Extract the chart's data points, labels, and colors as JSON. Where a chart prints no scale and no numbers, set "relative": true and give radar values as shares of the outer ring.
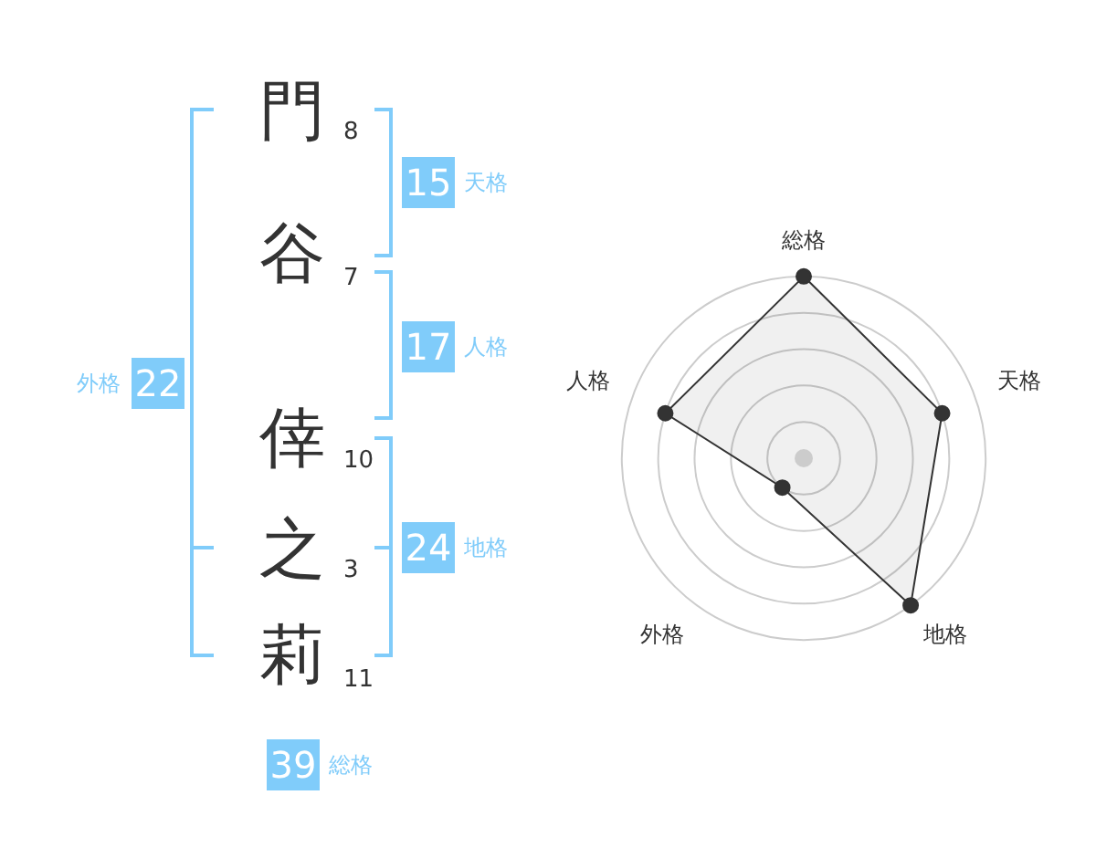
{
  "chart_data": [
    {
      "type": "other",
      "categories": [
        "門",
        "谷",
        "倖",
        "之",
        "莉"
      ],
      "values": [
        8,
        7,
        10,
        3,
        11
      ],
      "data_labels": true
    },
    {
      "type": "other",
      "categories": [
        "天格",
        "人格",
        "地格",
        "外格",
        "総格"
      ],
      "values": [
        15,
        17,
        24,
        22,
        39
      ],
      "color": "#80ccfa",
      "data_labels": true
    },
    {
      "type": "radar",
      "categories": [
        "総格",
        "天格",
        "地格",
        "外格",
        "人格"
      ],
      "series": [
        {
          "color": "#333333",
          "values": [
            1,
            0.8,
            1,
            0.2,
            0.8
          ]
        }
      ],
      "relative": true,
      "grid": true,
      "legend": false,
      "marker": "circle"
    }
  ]
}
